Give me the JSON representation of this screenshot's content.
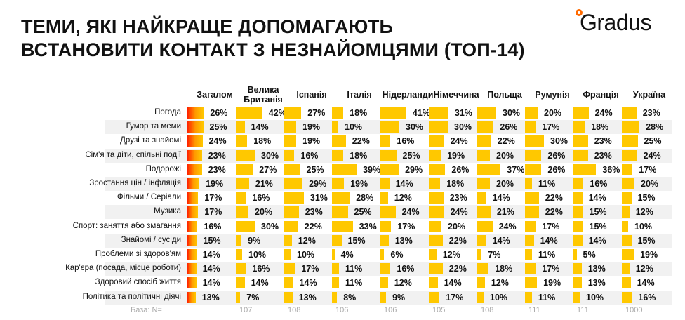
{
  "title_line1": "ТЕМИ, ЯКІ НАЙКРАЩЕ ДОПОМАГАЮТЬ",
  "title_line2": "ВСТАНОВИТИ КОНТАКТ З НЕЗНАЙОМЦЯМИ (ТОП-14)",
  "logo": "Gradus",
  "colors": {
    "bar": "#ffc800",
    "total_gradient_start": "#ff2000",
    "row_alt": "#f1f1f1"
  },
  "chart_data": {
    "type": "table",
    "title": "ТЕМИ, ЯКІ НАЙКРАЩЕ ДОПОМАГАЮТЬ ВСТАНОВИТИ КОНТАКТ З НЕЗНАЙОМЦЯМИ (ТОП-14)",
    "columns": [
      "Загалом",
      "Велика Британія",
      "Іспанія",
      "Італія",
      "Нідерланди",
      "Німеччина",
      "Польща",
      "Румунія",
      "Франція",
      "Україна"
    ],
    "base_label": "База: N=",
    "base": [
      "",
      "107",
      "108",
      "106",
      "106",
      "105",
      "108",
      "111",
      "111",
      "1000"
    ],
    "unit": "%",
    "rows": [
      {
        "label": "Погода",
        "values": [
          26,
          42,
          27,
          18,
          41,
          31,
          30,
          20,
          24,
          23
        ]
      },
      {
        "label": "Гумор та меми",
        "values": [
          25,
          14,
          19,
          10,
          30,
          30,
          26,
          17,
          18,
          28
        ]
      },
      {
        "label": "Друзі та знайомі",
        "values": [
          24,
          18,
          19,
          22,
          16,
          24,
          22,
          30,
          23,
          25
        ]
      },
      {
        "label": "Сім'я та діти, спільні події",
        "values": [
          23,
          30,
          16,
          18,
          25,
          19,
          20,
          26,
          23,
          24
        ]
      },
      {
        "label": "Подорожі",
        "values": [
          23,
          27,
          25,
          39,
          29,
          26,
          37,
          26,
          36,
          17
        ]
      },
      {
        "label": "Зростання цін / інфляція",
        "values": [
          19,
          21,
          29,
          19,
          14,
          18,
          20,
          11,
          16,
          20
        ]
      },
      {
        "label": "Фільми / Серіали",
        "values": [
          17,
          16,
          31,
          28,
          12,
          23,
          14,
          22,
          14,
          15
        ]
      },
      {
        "label": "Музика",
        "values": [
          17,
          20,
          23,
          25,
          24,
          24,
          21,
          22,
          15,
          12
        ]
      },
      {
        "label": "Спорт: заняття або змагання",
        "values": [
          16,
          30,
          22,
          33,
          17,
          20,
          24,
          17,
          15,
          10
        ]
      },
      {
        "label": "Знайомі / сусіди",
        "values": [
          15,
          9,
          12,
          15,
          13,
          22,
          14,
          14,
          14,
          15
        ]
      },
      {
        "label": "Проблеми зі здоров'ям",
        "values": [
          14,
          10,
          10,
          4,
          6,
          12,
          7,
          11,
          5,
          19
        ]
      },
      {
        "label": "Кар'єра (посада, місце роботи)",
        "values": [
          14,
          16,
          17,
          11,
          16,
          22,
          18,
          17,
          13,
          12
        ]
      },
      {
        "label": "Здоровий спосіб життя",
        "values": [
          14,
          14,
          14,
          11,
          12,
          14,
          12,
          19,
          13,
          14
        ]
      },
      {
        "label": "Політика та політичні діячі",
        "values": [
          13,
          7,
          13,
          8,
          9,
          17,
          10,
          11,
          10,
          16
        ]
      }
    ]
  }
}
